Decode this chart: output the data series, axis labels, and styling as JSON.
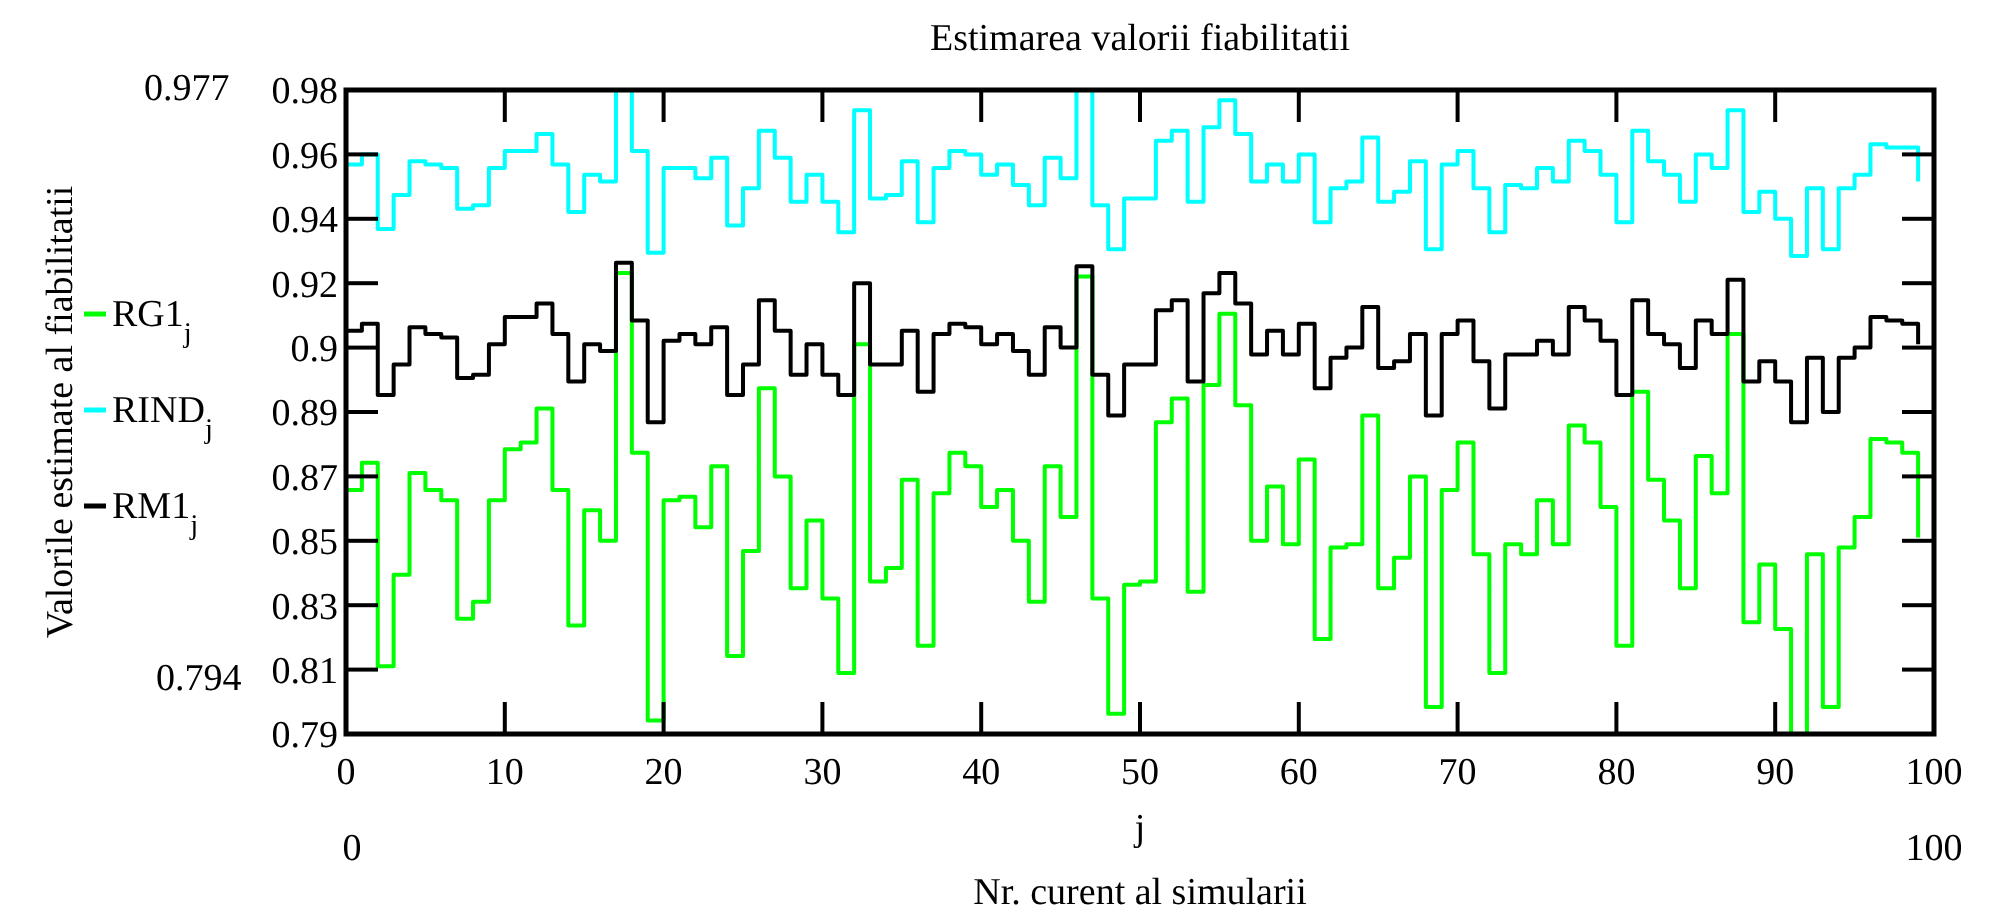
{
  "chart_data": {
    "type": "step",
    "title": "Estimarea valorii fiabilitatii",
    "xlabel": "Nr. curent al simularii",
    "ylabel": "Valorile estimate al fiabilitatii",
    "annotations": [
      "0.977",
      "0.794",
      "0",
      "100",
      "j"
    ],
    "xlim": [
      0,
      100
    ],
    "xticks": [
      0,
      10,
      20,
      30,
      40,
      50,
      60,
      70,
      80,
      90,
      100
    ],
    "ylim": [
      0.79,
      0.98
    ],
    "yticks": [
      0.79,
      {
        "value": 0.809,
        "label": "0.81"
      },
      {
        "value": 0.828,
        "label": "0.83"
      },
      {
        "value": 0.847,
        "label": "0.85"
      },
      {
        "value": 0.866,
        "label": "0.87"
      },
      {
        "value": 0.885,
        "label": "0.89"
      },
      {
        "value": 0.904,
        "label": "0.9"
      },
      {
        "value": 0.923,
        "label": "0.92"
      },
      {
        "value": 0.942,
        "label": "0.94"
      },
      {
        "value": 0.961,
        "label": "0.96"
      },
      0.98
    ],
    "grid": false,
    "legend": "left",
    "marker": "none",
    "line_style": "solid",
    "x": [
      0,
      1,
      2,
      3,
      4,
      5,
      6,
      7,
      8,
      9,
      10,
      11,
      12,
      13,
      14,
      15,
      16,
      17,
      18,
      19,
      20,
      21,
      22,
      23,
      24,
      25,
      26,
      27,
      28,
      29,
      30,
      31,
      32,
      33,
      34,
      35,
      36,
      37,
      38,
      39,
      40,
      41,
      42,
      43,
      44,
      45,
      46,
      47,
      48,
      49,
      50,
      51,
      52,
      53,
      54,
      55,
      56,
      57,
      58,
      59,
      60,
      61,
      62,
      63,
      64,
      65,
      66,
      67,
      68,
      69,
      70,
      71,
      72,
      73,
      74,
      75,
      76,
      77,
      78,
      79,
      80,
      81,
      82,
      83,
      84,
      85,
      86,
      87,
      88,
      89,
      90,
      91,
      92,
      93,
      94,
      95,
      96,
      97,
      98,
      99
    ],
    "series": [
      {
        "name": "RG1$_{j}$",
        "color": "#00ff00",
        "values": [
          0.862,
          0.87,
          0.81,
          0.837,
          0.867,
          0.862,
          0.859,
          0.824,
          0.829,
          0.859,
          0.874,
          0.876,
          0.886,
          0.862,
          0.822,
          0.856,
          0.847,
          0.926,
          0.873,
          0.794,
          0.859,
          0.86,
          0.851,
          0.869,
          0.813,
          0.844,
          0.892,
          0.866,
          0.833,
          0.853,
          0.83,
          0.808,
          0.905,
          0.835,
          0.839,
          0.865,
          0.816,
          0.861,
          0.873,
          0.869,
          0.857,
          0.862,
          0.847,
          0.829,
          0.869,
          0.854,
          0.925,
          0.83,
          0.796,
          0.834,
          0.835,
          0.882,
          0.889,
          0.832,
          0.893,
          0.914,
          0.887,
          0.847,
          0.863,
          0.846,
          0.871,
          0.818,
          0.845,
          0.846,
          0.884,
          0.833,
          0.842,
          0.866,
          0.798,
          0.862,
          0.876,
          0.843,
          0.808,
          0.846,
          0.843,
          0.859,
          0.846,
          0.881,
          0.876,
          0.857,
          0.816,
          0.891,
          0.865,
          0.853,
          0.833,
          0.872,
          0.861,
          0.908,
          0.823,
          0.84,
          0.821,
          0.79,
          0.843,
          0.798,
          0.845,
          0.854,
          0.877,
          0.876,
          0.873,
          0.848
        ]
      },
      {
        "name": "RIND$_{j}$",
        "color": "#00ffff",
        "values": [
          0.958,
          0.961,
          0.939,
          0.949,
          0.959,
          0.958,
          0.957,
          0.945,
          0.946,
          0.957,
          0.962,
          0.962,
          0.967,
          0.958,
          0.944,
          0.955,
          0.953,
          0.98,
          0.962,
          0.932,
          0.957,
          0.957,
          0.954,
          0.96,
          0.94,
          0.951,
          0.968,
          0.96,
          0.947,
          0.955,
          0.947,
          0.938,
          0.974,
          0.948,
          0.949,
          0.959,
          0.941,
          0.957,
          0.962,
          0.961,
          0.955,
          0.958,
          0.952,
          0.946,
          0.96,
          0.954,
          0.98,
          0.946,
          0.933,
          0.948,
          0.948,
          0.965,
          0.968,
          0.947,
          0.969,
          0.977,
          0.967,
          0.953,
          0.958,
          0.953,
          0.961,
          0.941,
          0.951,
          0.953,
          0.966,
          0.947,
          0.95,
          0.959,
          0.933,
          0.958,
          0.962,
          0.951,
          0.938,
          0.952,
          0.951,
          0.957,
          0.953,
          0.965,
          0.962,
          0.955,
          0.941,
          0.968,
          0.959,
          0.955,
          0.947,
          0.961,
          0.957,
          0.974,
          0.944,
          0.95,
          0.942,
          0.931,
          0.951,
          0.933,
          0.951,
          0.955,
          0.964,
          0.963,
          0.963,
          0.953
        ]
      },
      {
        "name": "RM1$_{j}$",
        "color": "#000000",
        "values": [
          0.909,
          0.911,
          0.89,
          0.899,
          0.91,
          0.908,
          0.907,
          0.895,
          0.896,
          0.905,
          0.913,
          0.913,
          0.917,
          0.908,
          0.894,
          0.905,
          0.903,
          0.929,
          0.912,
          0.882,
          0.906,
          0.908,
          0.905,
          0.91,
          0.89,
          0.899,
          0.918,
          0.909,
          0.896,
          0.905,
          0.896,
          0.89,
          0.923,
          0.899,
          0.899,
          0.909,
          0.891,
          0.908,
          0.911,
          0.91,
          0.905,
          0.908,
          0.903,
          0.896,
          0.91,
          0.904,
          0.928,
          0.896,
          0.884,
          0.899,
          0.899,
          0.915,
          0.918,
          0.894,
          0.92,
          0.926,
          0.917,
          0.902,
          0.909,
          0.902,
          0.911,
          0.892,
          0.901,
          0.904,
          0.916,
          0.898,
          0.9,
          0.908,
          0.884,
          0.908,
          0.912,
          0.9,
          0.886,
          0.902,
          0.902,
          0.906,
          0.902,
          0.916,
          0.912,
          0.906,
          0.89,
          0.918,
          0.908,
          0.905,
          0.898,
          0.912,
          0.908,
          0.924,
          0.894,
          0.9,
          0.894,
          0.882,
          0.901,
          0.885,
          0.901,
          0.904,
          0.913,
          0.912,
          0.911,
          0.905
        ]
      }
    ]
  }
}
